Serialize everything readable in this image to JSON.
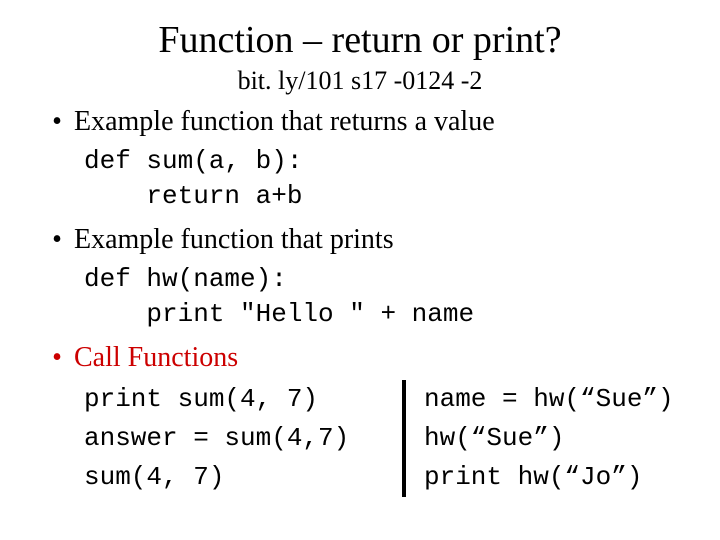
{
  "title": "Function – return or print?",
  "subtitle": "bit. ly/101 s17 -0124 -2",
  "bullets": {
    "b1": "Example function that returns a value",
    "b2": "Example function that prints",
    "b3": "Call Functions"
  },
  "code1": {
    "l1": "def sum(a, b):",
    "l2": "    return a+b"
  },
  "code2": {
    "l1": "def hw(name):",
    "l2": "    print \"Hello \" + name"
  },
  "calls_left": {
    "l1": "print sum(4, 7)",
    "l2": "answer = sum(4,7)",
    "l3": "sum(4, 7)"
  },
  "calls_right": {
    "l1": "name = hw(“Sue”)",
    "l2": "hw(“Sue”)",
    "l3": "print hw(“Jo”)"
  },
  "colors": {
    "accent": "#cc0000",
    "text": "#000000",
    "background": "#ffffff"
  }
}
